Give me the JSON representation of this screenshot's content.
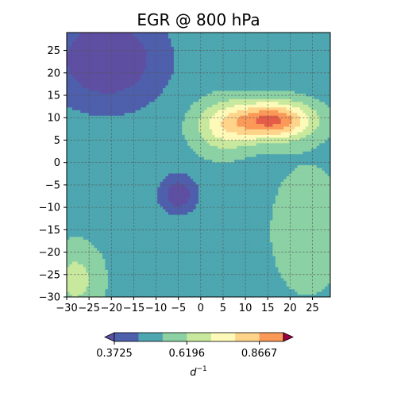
{
  "chart_data": {
    "type": "heatmap",
    "subtype": "filled-contour",
    "title": "EGR @ 800 hPa",
    "xlabel": "",
    "ylabel": "",
    "xlim": [
      -30,
      29
    ],
    "ylim": [
      -30,
      29
    ],
    "x_ticks": [
      -30,
      -25,
      -20,
      -15,
      -10,
      -5,
      0,
      5,
      10,
      15,
      20,
      25
    ],
    "y_ticks": [
      -30,
      -25,
      -20,
      -15,
      -10,
      -5,
      0,
      5,
      10,
      15,
      20,
      25
    ],
    "grid": true,
    "grid_style": "dashed",
    "colormap": "Spectral_r",
    "colorbar": {
      "orientation": "horizontal",
      "placement": "bottom",
      "extend": "both",
      "unit": "d⁻¹",
      "unit_base": "d",
      "unit_exp": "−1",
      "levels": [
        0.3725,
        0.4549,
        0.5372,
        0.6196,
        0.702,
        0.7843,
        0.8667,
        0.949
      ],
      "tick_labels": [
        "0.3725",
        "0.6196",
        "0.8667"
      ],
      "tick_values": [
        0.3725,
        0.6196,
        0.8667
      ],
      "colors": [
        "#5e4fa2",
        "#4e5fac",
        "#4da6b0",
        "#8bd1a4",
        "#c8e89e",
        "#fdfab9",
        "#fed48b",
        "#fb9958",
        "#e55c48",
        "#c41d49",
        "#9e0142"
      ]
    },
    "field": {
      "background": 0.5,
      "features": [
        {
          "kind": "maximum",
          "x": 16,
          "y": 9.5,
          "amplitude": 0.46,
          "sx": 9,
          "sy": 4.2
        },
        {
          "kind": "maximum",
          "x": 5,
          "y": 8,
          "amplitude": 0.2,
          "sx": 7,
          "sy": 6
        },
        {
          "kind": "minimum",
          "x": -21,
          "y": 23,
          "amplitude": -0.22,
          "sx": 12,
          "sy": 10
        },
        {
          "kind": "minimum",
          "x": -5,
          "y": -7,
          "amplitude": -0.19,
          "sx": 4,
          "sy": 4
        },
        {
          "kind": "maximum",
          "x": -28,
          "y": -26,
          "amplitude": 0.15,
          "sx": 6,
          "sy": 8
        },
        {
          "kind": "maximum",
          "x": 24,
          "y": -15,
          "amplitude": 0.11,
          "sx": 8,
          "sy": 14
        }
      ]
    }
  }
}
